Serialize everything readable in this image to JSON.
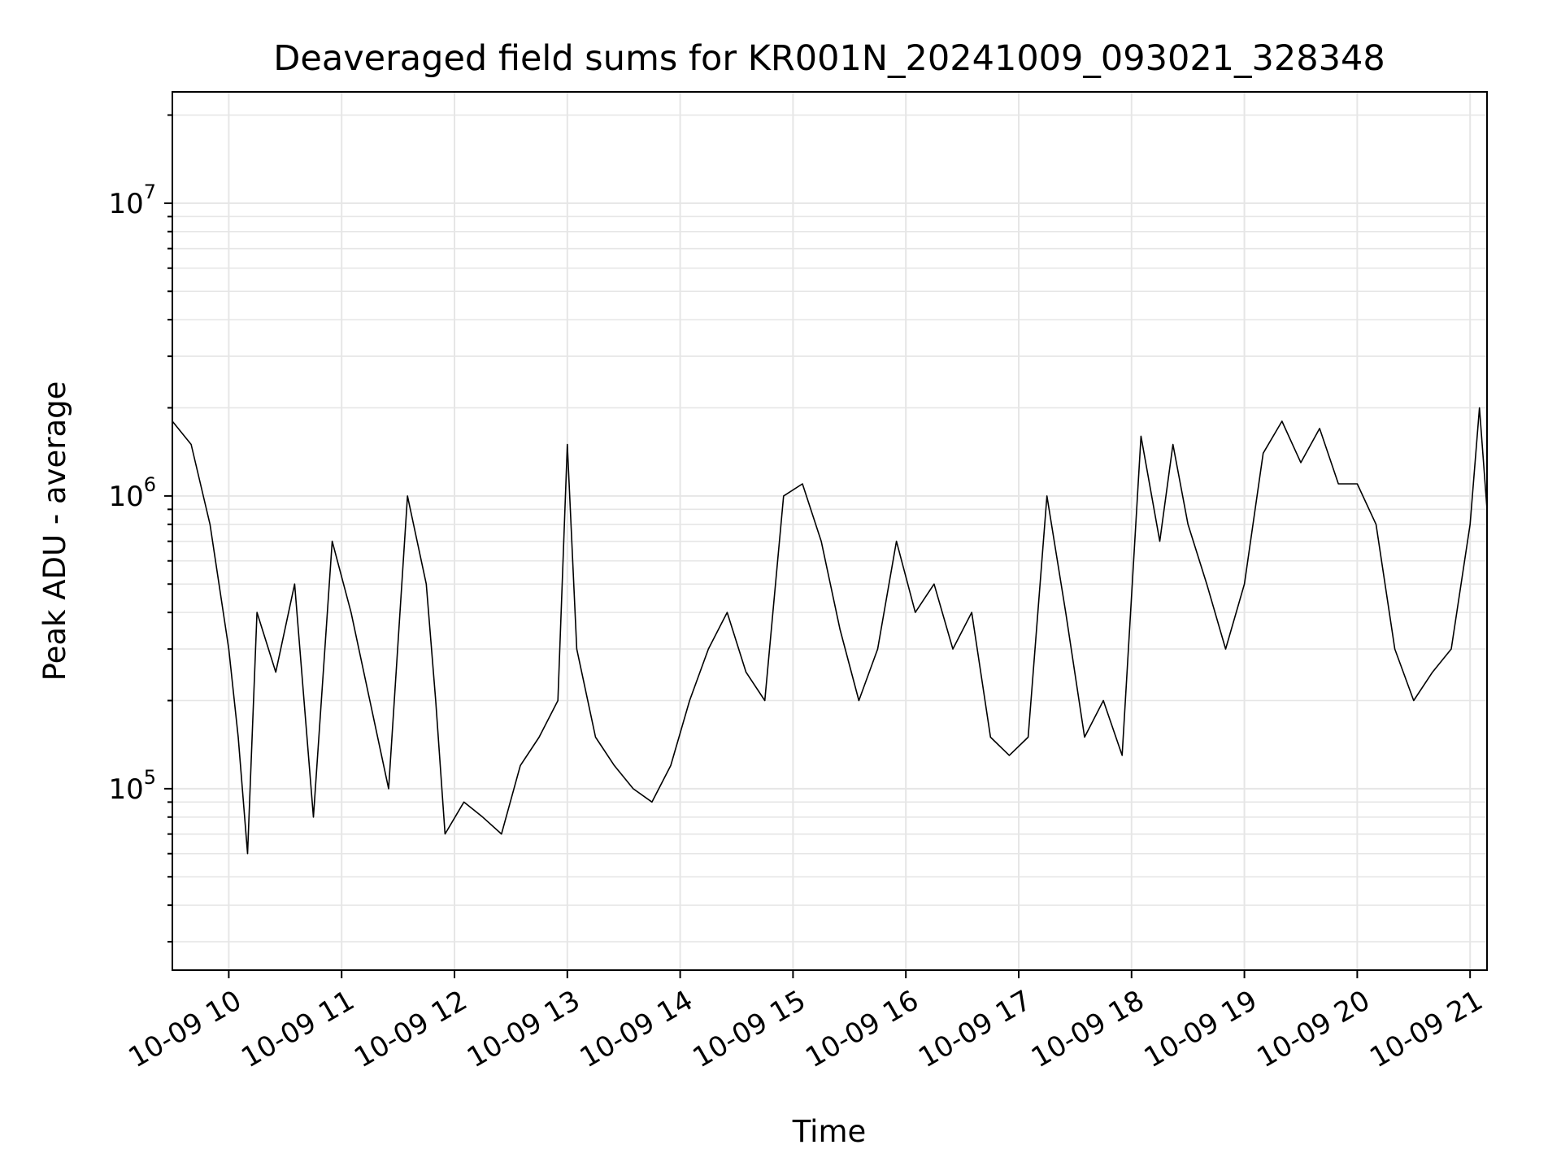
{
  "chart_data": {
    "type": "line",
    "title": "Deaveraged field sums for KR001N_20241009_093021_328348",
    "xlabel": "Time",
    "ylabel": "Peak ADU - average",
    "yscale": "log",
    "ylim": [
      24000,
      24000000
    ],
    "xlim": [
      "2024-10-09 09:30",
      "2024-10-09 21:09"
    ],
    "x_tick_labels": [
      "10-09 10",
      "10-09 11",
      "10-09 12",
      "10-09 13",
      "10-09 14",
      "10-09 15",
      "10-09 16",
      "10-09 17",
      "10-09 18",
      "10-09 19",
      "10-09 20",
      "10-09 21"
    ],
    "y_tick_labels": [
      {
        "base": "10",
        "exp": "5",
        "value": 100000
      },
      {
        "base": "10",
        "exp": "6",
        "value": 1000000
      },
      {
        "base": "10",
        "exp": "7",
        "value": 10000000
      }
    ],
    "grid": true,
    "line_color": "#000000",
    "series": [
      {
        "x": [
          "2024-10-09 09:30",
          "2024-10-09 09:40",
          "2024-10-09 09:50",
          "2024-10-09 10:00",
          "2024-10-09 10:05",
          "2024-10-09 10:10",
          "2024-10-09 10:15",
          "2024-10-09 10:25",
          "2024-10-09 10:35",
          "2024-10-09 10:45",
          "2024-10-09 10:55",
          "2024-10-09 11:05",
          "2024-10-09 11:15",
          "2024-10-09 11:25",
          "2024-10-09 11:35",
          "2024-10-09 11:45",
          "2024-10-09 11:50",
          "2024-10-09 11:55",
          "2024-10-09 12:05",
          "2024-10-09 12:15",
          "2024-10-09 12:25",
          "2024-10-09 12:35",
          "2024-10-09 12:45",
          "2024-10-09 12:55",
          "2024-10-09 13:00",
          "2024-10-09 13:05",
          "2024-10-09 13:15",
          "2024-10-09 13:25",
          "2024-10-09 13:35",
          "2024-10-09 13:45",
          "2024-10-09 13:55",
          "2024-10-09 14:05",
          "2024-10-09 14:15",
          "2024-10-09 14:25",
          "2024-10-09 14:35",
          "2024-10-09 14:45",
          "2024-10-09 14:55",
          "2024-10-09 15:05",
          "2024-10-09 15:15",
          "2024-10-09 15:25",
          "2024-10-09 15:35",
          "2024-10-09 15:45",
          "2024-10-09 15:55",
          "2024-10-09 16:05",
          "2024-10-09 16:15",
          "2024-10-09 16:25",
          "2024-10-09 16:35",
          "2024-10-09 16:45",
          "2024-10-09 16:55",
          "2024-10-09 17:05",
          "2024-10-09 17:15",
          "2024-10-09 17:25",
          "2024-10-09 17:35",
          "2024-10-09 17:45",
          "2024-10-09 17:55",
          "2024-10-09 18:05",
          "2024-10-09 18:15",
          "2024-10-09 18:22",
          "2024-10-09 18:30",
          "2024-10-09 18:40",
          "2024-10-09 18:50",
          "2024-10-09 19:00",
          "2024-10-09 19:10",
          "2024-10-09 19:20",
          "2024-10-09 19:30",
          "2024-10-09 19:40",
          "2024-10-09 19:50",
          "2024-10-09 20:00",
          "2024-10-09 20:10",
          "2024-10-09 20:20",
          "2024-10-09 20:30",
          "2024-10-09 20:40",
          "2024-10-09 20:50",
          "2024-10-09 21:00",
          "2024-10-09 21:05",
          "2024-10-09 21:09"
        ],
        "y": [
          1800000,
          1500000,
          800000,
          300000,
          150000,
          60000,
          400000,
          250000,
          500000,
          80000,
          700000,
          400000,
          200000,
          100000,
          1000000,
          500000,
          200000,
          70000,
          90000,
          80000,
          70000,
          120000,
          150000,
          200000,
          1500000,
          300000,
          150000,
          120000,
          100000,
          90000,
          120000,
          200000,
          300000,
          400000,
          250000,
          200000,
          1000000,
          1100000,
          700000,
          350000,
          200000,
          300000,
          700000,
          400000,
          500000,
          300000,
          400000,
          150000,
          130000,
          150000,
          1000000,
          400000,
          150000,
          200000,
          130000,
          1600000,
          700000,
          1500000,
          800000,
          500000,
          300000,
          500000,
          1400000,
          1800000,
          1300000,
          1700000,
          1100000,
          1100000,
          800000,
          300000,
          200000,
          250000,
          300000,
          800000,
          2000000,
          900000
        ]
      }
    ]
  }
}
